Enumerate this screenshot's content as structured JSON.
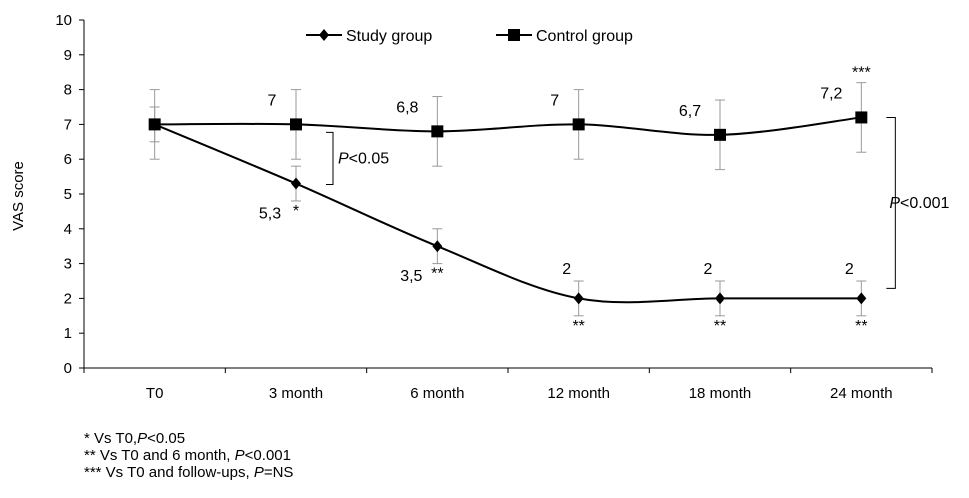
{
  "chart_data": {
    "type": "line",
    "title": "",
    "xlabel": "",
    "ylabel": "VAS score",
    "ylim": [
      0,
      10
    ],
    "yticks": [
      "0",
      "1",
      "2",
      "3",
      "4",
      "5",
      "6",
      "7",
      "8",
      "9",
      "10"
    ],
    "categories": [
      "T0",
      "3 month",
      "6 month",
      "12 month",
      "18 month",
      "24 month"
    ],
    "legend_position": "top",
    "grid": false,
    "series": [
      {
        "name": "Study group",
        "marker": "diamond",
        "values": [
          7,
          5.3,
          3.5,
          2,
          2,
          2
        ],
        "error": [
          0.5,
          0.5,
          0.5,
          0.5,
          0.5,
          0.5
        ],
        "value_labels": [
          "",
          "5,3",
          "3,5",
          "2",
          "2",
          "2"
        ],
        "sig_marks": [
          "",
          "*",
          "**",
          "**",
          "**",
          "**"
        ]
      },
      {
        "name": "Control group",
        "marker": "square",
        "values": [
          7,
          7,
          6.8,
          7,
          6.7,
          7.2
        ],
        "error": [
          1,
          1,
          1,
          1,
          1,
          1
        ],
        "value_labels": [
          "",
          "7",
          "6,8",
          "7",
          "6,7",
          "7,2"
        ],
        "sig_marks": [
          "",
          "",
          "",
          "",
          "",
          "***"
        ]
      }
    ],
    "annotations": [
      {
        "p_italic": "P",
        "rest": "<0.05",
        "between_category": "3 month"
      },
      {
        "p_italic": "P",
        "rest": "<0.001",
        "between_category": "24 month"
      }
    ]
  },
  "footnotes": [
    {
      "prefix": "*  Vs T0,",
      "p": "P",
      "suffix": "<0.05"
    },
    {
      "prefix": "**  Vs T0 and 6 month, ",
      "p": "P",
      "suffix": "<0.001"
    },
    {
      "prefix": "***  Vs T0 and follow-ups, ",
      "p": "P",
      "suffix": "=NS"
    }
  ]
}
